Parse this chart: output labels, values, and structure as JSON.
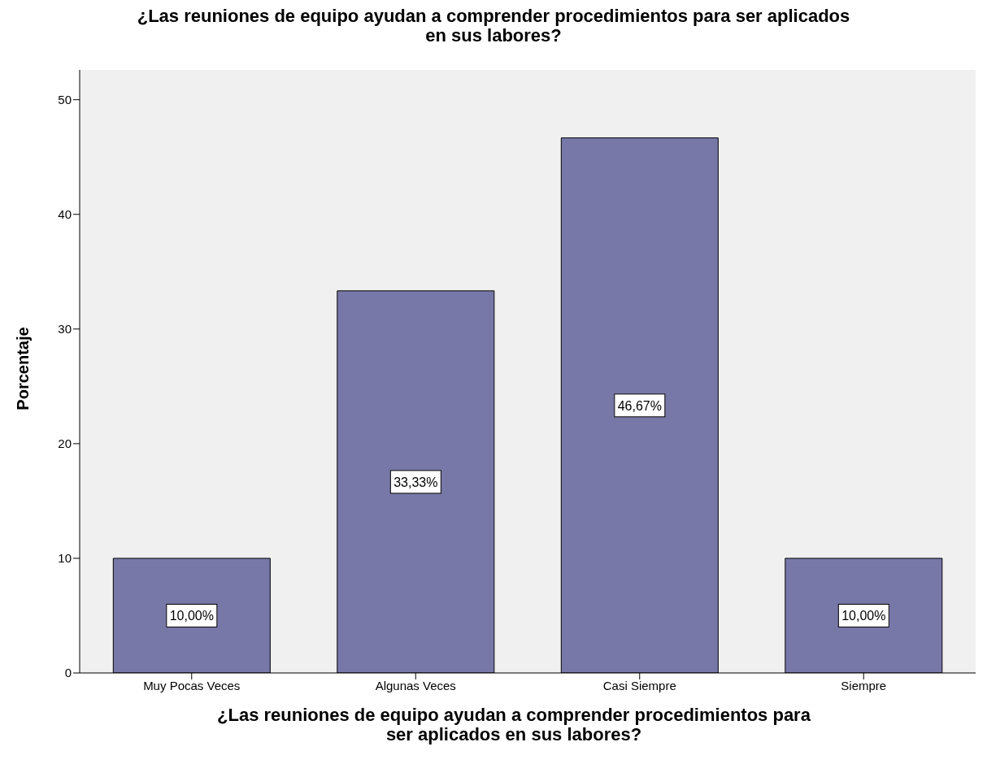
{
  "chart_data": {
    "type": "bar",
    "title": "¿Las reuniones de equipo ayudan a comprender procedimientos para ser aplicados en sus labores?",
    "xlabel": "¿Las reuniones de equipo ayudan a comprender procedimientos para ser aplicados en sus labores?",
    "ylabel": "Porcentaje",
    "categories": [
      "Muy Pocas Veces",
      "Algunas Veces",
      "Casi Siempre",
      "Siempre"
    ],
    "values": [
      10,
      33.33,
      46.67,
      10
    ],
    "value_labels": [
      "10,00%",
      "33,33%",
      "46,67%",
      "10,00%"
    ],
    "color": "#7878a8",
    "ylim": [
      0,
      52.6
    ],
    "yticks": [
      0,
      10,
      20,
      30,
      40,
      50
    ],
    "grid": false
  }
}
